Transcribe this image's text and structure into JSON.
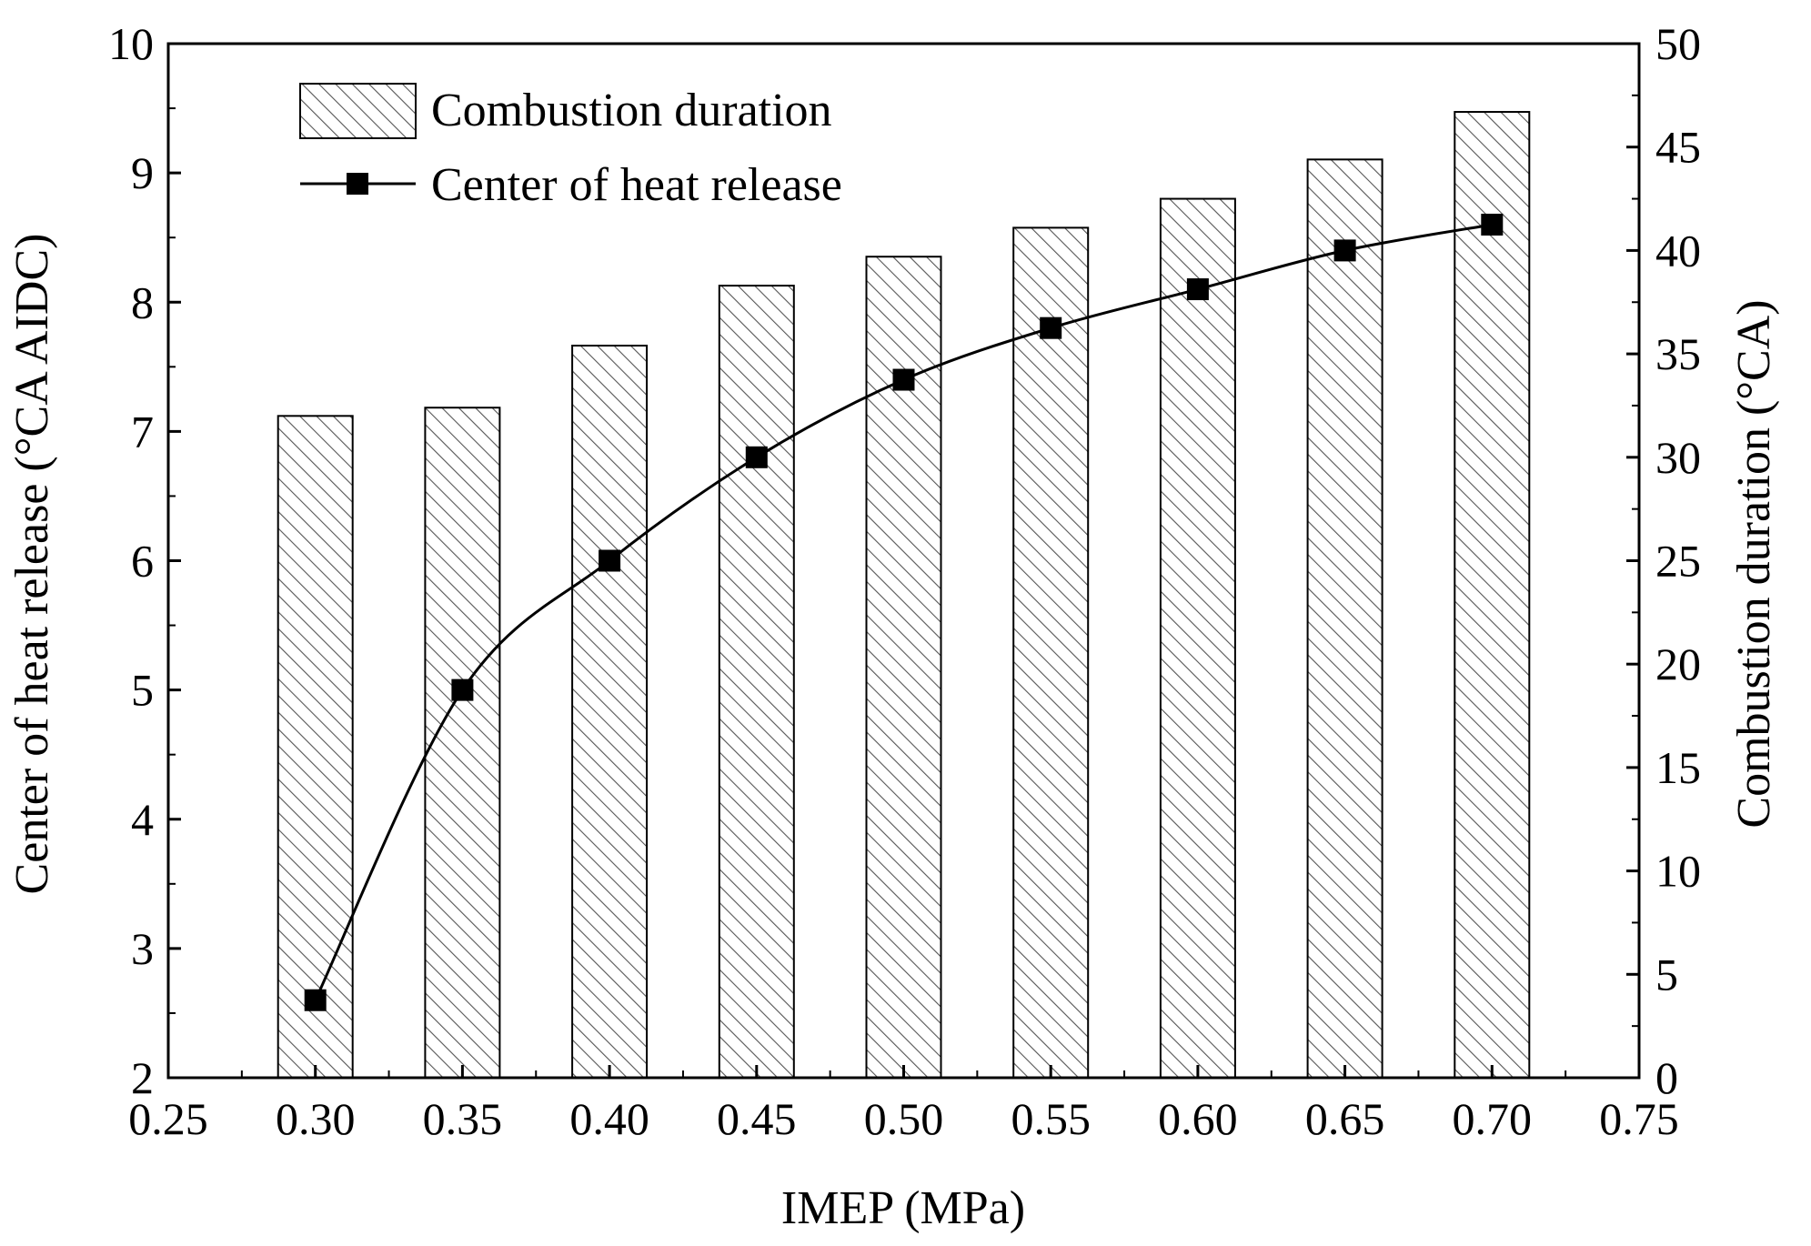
{
  "chart_data": {
    "type": "bar+line",
    "x_axis": {
      "label": "IMEP (MPa)",
      "range": [
        0.25,
        0.75
      ],
      "ticks": [
        0.25,
        0.3,
        0.35,
        0.4,
        0.45,
        0.5,
        0.55,
        0.6,
        0.65,
        0.7,
        0.75
      ],
      "tick_labels": [
        "0.25",
        "0.30",
        "0.35",
        "0.40",
        "0.45",
        "0.50",
        "0.55",
        "0.60",
        "0.65",
        "0.70",
        "0.75"
      ]
    },
    "y_left": {
      "label": "Center of heat release (°CA AIDC)",
      "range": [
        2,
        10
      ],
      "ticks": [
        2,
        3,
        4,
        5,
        6,
        7,
        8,
        9,
        10
      ],
      "tick_labels": [
        "2",
        "3",
        "4",
        "5",
        "6",
        "7",
        "8",
        "9",
        "10"
      ]
    },
    "y_right": {
      "label": "Combustion duration (°CA)",
      "range": [
        0,
        50
      ],
      "ticks": [
        0,
        5,
        10,
        15,
        20,
        25,
        30,
        35,
        40,
        45,
        50
      ],
      "tick_labels": [
        "0",
        "5",
        "10",
        "15",
        "20",
        "25",
        "30",
        "35",
        "40",
        "45",
        "50"
      ]
    },
    "series": [
      {
        "name": "Combustion duration",
        "kind": "bar",
        "axis": "right",
        "pattern": "diagonal-hatch",
        "x": [
          0.3,
          0.35,
          0.4,
          0.45,
          0.5,
          0.55,
          0.6,
          0.65,
          0.7
        ],
        "values": [
          32.0,
          32.4,
          35.4,
          38.3,
          39.7,
          41.1,
          42.5,
          44.4,
          46.7
        ]
      },
      {
        "name": "Center of heat release",
        "kind": "line",
        "marker": "square",
        "axis": "left",
        "x": [
          0.3,
          0.35,
          0.4,
          0.45,
          0.5,
          0.55,
          0.6,
          0.65,
          0.7
        ],
        "values": [
          2.6,
          5.0,
          6.0,
          6.8,
          7.4,
          7.8,
          8.1,
          8.4,
          8.6
        ]
      }
    ],
    "legend": {
      "placement": "top-left"
    },
    "grid": false
  }
}
